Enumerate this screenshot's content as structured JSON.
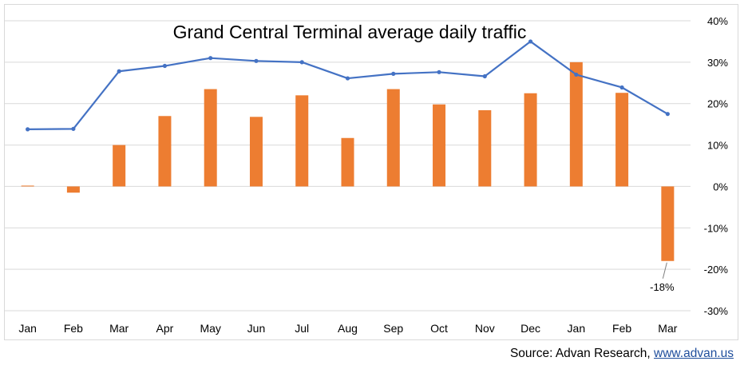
{
  "chart_data": {
    "type": "bar",
    "title": "Grand Central Terminal average daily traffic",
    "categories": [
      "Jan",
      "Feb",
      "Mar",
      "Apr",
      "May",
      "Jun",
      "Jul",
      "Aug",
      "Sep",
      "Oct",
      "Nov",
      "Dec",
      "Jan",
      "Feb",
      "Mar"
    ],
    "series": [
      {
        "type": "bar",
        "color": "#ed7d31",
        "values": [
          0.2,
          -1.5,
          10,
          17,
          23.5,
          16.8,
          22,
          11.7,
          23.5,
          19.8,
          18.4,
          22.5,
          30,
          22.6,
          -18
        ]
      },
      {
        "type": "line",
        "color": "#4472c4",
        "values": [
          13.8,
          13.9,
          27.8,
          29.1,
          31,
          30.3,
          30,
          26.1,
          27.2,
          27.6,
          26.6,
          35,
          27,
          23.9,
          17.5
        ]
      }
    ],
    "ylim": [
      -30,
      40
    ],
    "yticks": [
      -30,
      -20,
      -10,
      0,
      10,
      20,
      30,
      40
    ],
    "ytick_labels": [
      "-30%",
      "-20%",
      "-10%",
      "0%",
      "10%",
      "20%",
      "30%",
      "40%"
    ],
    "y_axis_side": "right",
    "grid": true,
    "annotations": [
      {
        "category_index": 14,
        "series": 0,
        "text": "-18%"
      }
    ]
  },
  "source": {
    "prefix": "Source: Advan Research, ",
    "link": "www.advan.us"
  }
}
